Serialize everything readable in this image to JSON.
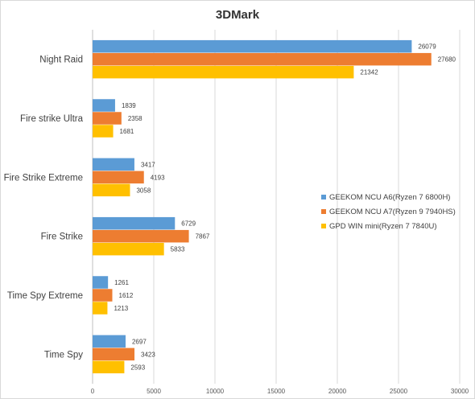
{
  "chart_data": {
    "type": "bar",
    "orientation": "horizontal",
    "title": "3DMark",
    "categories": [
      "Night Raid",
      "Fire strike Ultra",
      "Fire Strike Extreme",
      "Fire Strike",
      "Time Spy Extreme",
      "Time Spy"
    ],
    "series": [
      {
        "name": "GEEKOM NCU A6(Ryzen 7 6800H)",
        "color": "#5B9BD5",
        "values": [
          26079,
          1839,
          3417,
          6729,
          1261,
          2697
        ]
      },
      {
        "name": "GEEKOM NCU A7(Ryzen 9 7940HS)",
        "color": "#ED7D31",
        "values": [
          27680,
          2358,
          4193,
          7867,
          1612,
          3423
        ]
      },
      {
        "name": "GPD WIN mini(Ryzen 7 7840U)",
        "color": "#FFC000",
        "values": [
          21342,
          1681,
          3058,
          5833,
          1213,
          2593
        ]
      }
    ],
    "xlim": [
      0,
      30000
    ],
    "xticks": [
      0,
      5000,
      10000,
      15000,
      20000,
      25000,
      30000
    ],
    "grid": true,
    "legend_position": "right",
    "data_labels": true
  }
}
